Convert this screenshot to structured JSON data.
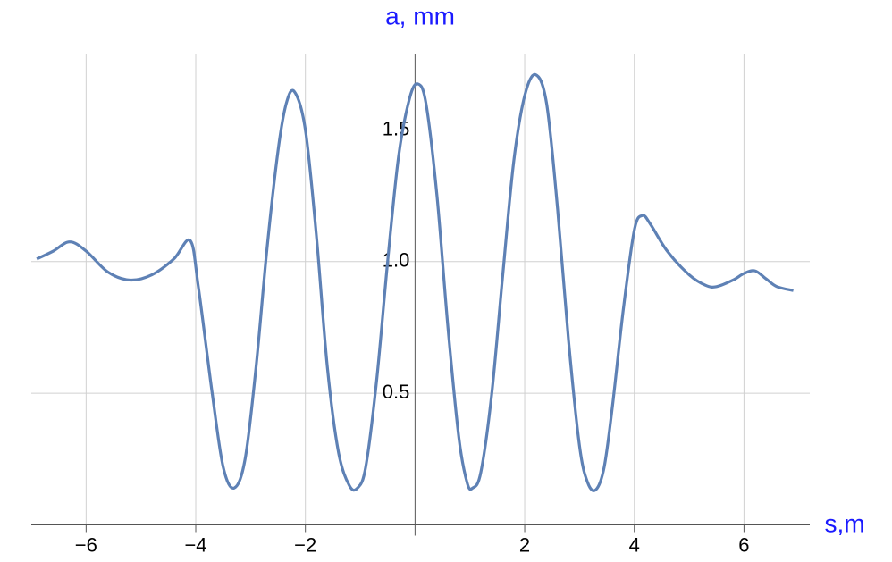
{
  "chart_data": {
    "type": "line",
    "x_label": "s,m",
    "y_label": "a, mm",
    "xlim": [
      -7,
      7.2
    ],
    "ylim": [
      0,
      1.79
    ],
    "xticks": [
      {
        "value": -6,
        "label": "−6"
      },
      {
        "value": -4,
        "label": "−4"
      },
      {
        "value": -2,
        "label": "−2"
      },
      2,
      4,
      6
    ],
    "yticks": [
      0.5,
      {
        "value": 1,
        "label": "1.0"
      },
      1.5
    ],
    "grid": true,
    "x": [
      -6.9,
      -6.6,
      -6.3,
      -6.0,
      -5.6,
      -5.2,
      -4.8,
      -4.4,
      -4.1,
      -3.95,
      -3.7,
      -3.5,
      -3.3,
      -3.1,
      -2.9,
      -2.7,
      -2.5,
      -2.35,
      -2.2,
      -2.0,
      -1.8,
      -1.6,
      -1.4,
      -1.2,
      -1.05,
      -0.9,
      -0.7,
      -0.5,
      -0.3,
      -0.1,
      0.05,
      0.2,
      0.4,
      0.6,
      0.8,
      0.95,
      1.05,
      1.2,
      1.4,
      1.6,
      1.8,
      2.0,
      2.2,
      2.4,
      2.6,
      2.8,
      3.0,
      3.15,
      3.3,
      3.45,
      3.6,
      3.8,
      4.0,
      4.15,
      4.3,
      4.6,
      5.0,
      5.3,
      5.5,
      5.8,
      6.0,
      6.2,
      6.4,
      6.6,
      6.9
    ],
    "series": [
      {
        "color": "#5e81b5",
        "values": [
          1.01,
          1.04,
          1.075,
          1.04,
          0.96,
          0.93,
          0.95,
          1.01,
          1.08,
          0.9,
          0.5,
          0.22,
          0.14,
          0.25,
          0.6,
          1.05,
          1.42,
          1.6,
          1.645,
          1.5,
          1.1,
          0.6,
          0.28,
          0.15,
          0.14,
          0.22,
          0.55,
          1.0,
          1.4,
          1.62,
          1.675,
          1.6,
          1.25,
          0.75,
          0.33,
          0.16,
          0.14,
          0.2,
          0.5,
          0.95,
          1.38,
          1.63,
          1.71,
          1.6,
          1.2,
          0.7,
          0.3,
          0.16,
          0.134,
          0.22,
          0.45,
          0.82,
          1.12,
          1.175,
          1.14,
          1.04,
          0.95,
          0.91,
          0.905,
          0.93,
          0.955,
          0.965,
          0.935,
          0.905,
          0.89
        ]
      }
    ]
  }
}
